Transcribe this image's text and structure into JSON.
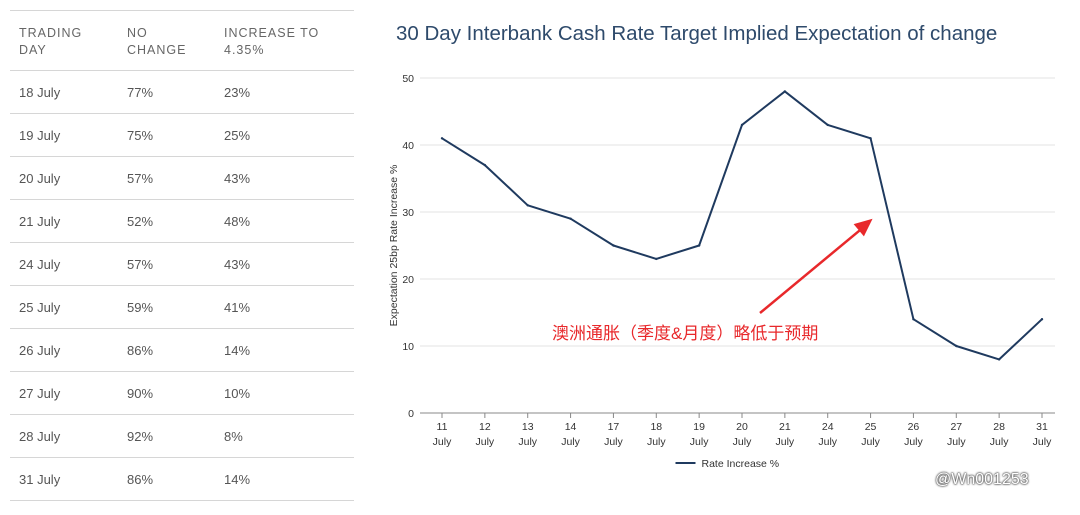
{
  "table": {
    "headers": [
      "TRADING\nDAY",
      "NO\nCHANGE",
      "INCREASE TO\n4.35%"
    ],
    "rows": [
      [
        "18 July",
        "77%",
        "23%"
      ],
      [
        "19 July",
        "75%",
        "25%"
      ],
      [
        "20 July",
        "57%",
        "43%"
      ],
      [
        "21 July",
        "52%",
        "48%"
      ],
      [
        "24 July",
        "57%",
        "43%"
      ],
      [
        "25 July",
        "59%",
        "41%"
      ],
      [
        "26 July",
        "86%",
        "14%"
      ],
      [
        "27 July",
        "90%",
        "10%"
      ],
      [
        "28 July",
        "92%",
        "8%"
      ],
      [
        "31 July",
        "86%",
        "14%"
      ]
    ]
  },
  "chart_data": {
    "type": "line",
    "title": "30 Day Interbank Cash Rate Target Implied Expectation of change",
    "xlabel": "",
    "ylabel": "Expectation 25bp Rate Increase %",
    "categories": [
      "11\nJuly",
      "12\nJuly",
      "13\nJuly",
      "14\nJuly",
      "17\nJuly",
      "18\nJuly",
      "19\nJuly",
      "20\nJuly",
      "21\nJuly",
      "24\nJuly",
      "25\nJuly",
      "26\nJuly",
      "27\nJuly",
      "28\nJuly",
      "31\nJuly"
    ],
    "series": [
      {
        "name": "Rate Increase %",
        "values": [
          41,
          37,
          31,
          29,
          25,
          23,
          25,
          43,
          48,
          43,
          41,
          14,
          10,
          8,
          14
        ]
      }
    ],
    "ylim": [
      0,
      50
    ],
    "yticks": [
      0,
      10,
      20,
      30,
      40,
      50
    ],
    "grid": true,
    "legend": "bottom-center",
    "line_color": "#1f3a5f",
    "annotation": {
      "text": "澳洲通胀（季度&月度）略低于预期",
      "color": "#e8282b",
      "points_to": {
        "category_index": 10,
        "value": 29
      }
    }
  },
  "watermark": "@Wn001253"
}
